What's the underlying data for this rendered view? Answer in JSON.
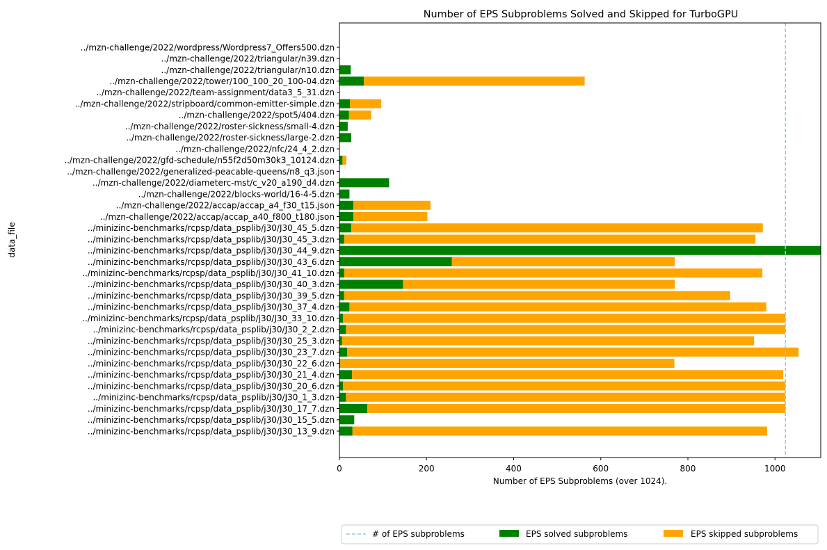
{
  "chart_data": {
    "type": "bar",
    "orientation": "horizontal",
    "stacked": true,
    "title": "Number of EPS Subproblems Solved and Skipped for TurboGPU",
    "xlabel": "Number of EPS Subproblems (over 1024).",
    "ylabel": "data_file",
    "xlim": [
      0,
      1105
    ],
    "x_ticks": [
      "0",
      "200",
      "400",
      "600",
      "800",
      "1000"
    ],
    "grid": false,
    "legend_position": "bottom-right, below plot",
    "reference_line": {
      "value": 1024,
      "style": "dashed",
      "color": "#87ceeb",
      "legend_label": "# of EPS subproblems"
    },
    "categories": [
      "../mzn-challenge/2022/wordpress/Wordpress7_Offers500.dzn",
      "../mzn-challenge/2022/triangular/n39.dzn",
      "../mzn-challenge/2022/triangular/n10.dzn",
      "../mzn-challenge/2022/tower/100_100_20_100-04.dzn",
      "../mzn-challenge/2022/team-assignment/data3_5_31.dzn",
      "../mzn-challenge/2022/stripboard/common-emitter-simple.dzn",
      "../mzn-challenge/2022/spot5/404.dzn",
      "../mzn-challenge/2022/roster-sickness/small-4.dzn",
      "../mzn-challenge/2022/roster-sickness/large-2.dzn",
      "../mzn-challenge/2022/nfc/24_4_2.dzn",
      "../mzn-challenge/2022/gfd-schedule/n55f2d50m30k3_10124.dzn",
      "../mzn-challenge/2022/generalized-peacable-queens/n8_q3.json",
      "../mzn-challenge/2022/diameterc-mst/c_v20_a190_d4.dzn",
      "../mzn-challenge/2022/blocks-world/16-4-5.dzn",
      "../mzn-challenge/2022/accap/accap_a4_f30_t15.json",
      "../mzn-challenge/2022/accap/accap_a40_f800_t180.json",
      "../minizinc-benchmarks/rcpsp/data_psplib/j30/J30_45_5.dzn",
      "../minizinc-benchmarks/rcpsp/data_psplib/j30/J30_45_3.dzn",
      "../minizinc-benchmarks/rcpsp/data_psplib/j30/J30_44_9.dzn",
      "../minizinc-benchmarks/rcpsp/data_psplib/j30/J30_43_6.dzn",
      "../minizinc-benchmarks/rcpsp/data_psplib/j30/J30_41_10.dzn",
      "../minizinc-benchmarks/rcpsp/data_psplib/j30/J30_40_3.dzn",
      "../minizinc-benchmarks/rcpsp/data_psplib/j30/J30_39_5.dzn",
      "../minizinc-benchmarks/rcpsp/data_psplib/j30/J30_37_4.dzn",
      "../minizinc-benchmarks/rcpsp/data_psplib/j30/J30_33_10.dzn",
      "../minizinc-benchmarks/rcpsp/data_psplib/j30/J30_2_2.dzn",
      "../minizinc-benchmarks/rcpsp/data_psplib/j30/J30_25_3.dzn",
      "../minizinc-benchmarks/rcpsp/data_psplib/j30/J30_23_7.dzn",
      "../minizinc-benchmarks/rcpsp/data_psplib/j30/J30_22_6.dzn",
      "../minizinc-benchmarks/rcpsp/data_psplib/j30/J30_21_4.dzn",
      "../minizinc-benchmarks/rcpsp/data_psplib/j30/J30_20_6.dzn",
      "../minizinc-benchmarks/rcpsp/data_psplib/j30/J30_1_3.dzn",
      "../minizinc-benchmarks/rcpsp/data_psplib/j30/J30_17_7.dzn",
      "../minizinc-benchmarks/rcpsp/data_psplib/j30/J30_15_5.dzn",
      "../minizinc-benchmarks/rcpsp/data_psplib/j30/J30_13_9.dzn"
    ],
    "series": [
      {
        "name": "EPS solved subproblems",
        "color": "#008000",
        "values": [
          0,
          0,
          26,
          56,
          0,
          24,
          22,
          19,
          27,
          0,
          7,
          0,
          114,
          23,
          32,
          32,
          27,
          11,
          1105,
          258,
          11,
          146,
          11,
          23,
          8,
          15,
          6,
          18,
          2,
          29,
          8,
          15,
          64,
          34,
          30
        ]
      },
      {
        "name": "EPS skipped subproblems",
        "color": "#ffa500",
        "values": [
          0,
          0,
          0,
          507,
          0,
          72,
          51,
          0,
          0,
          0,
          9,
          0,
          0,
          0,
          177,
          170,
          945,
          944,
          0,
          512,
          960,
          624,
          886,
          957,
          1016,
          1009,
          946,
          1036,
          767,
          990,
          1016,
          1009,
          960,
          0,
          952
        ]
      }
    ]
  }
}
